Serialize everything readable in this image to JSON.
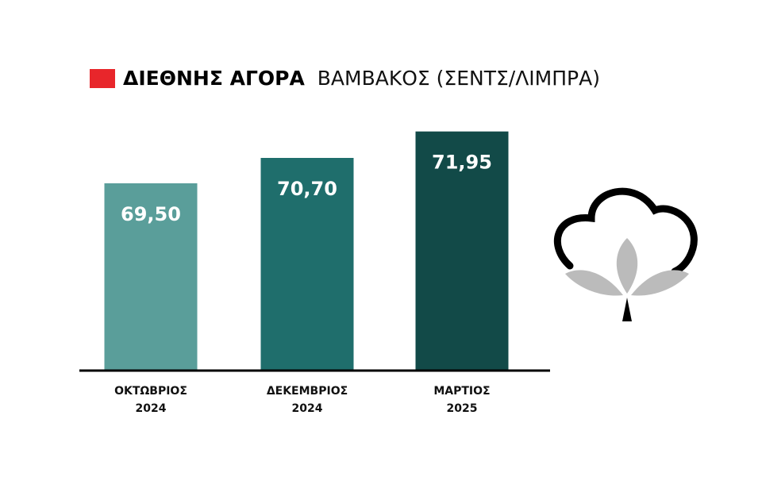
{
  "chart_data": {
    "type": "bar",
    "title": "ΔΙΕΘΝΗΣ ΑΓΟΡΑ",
    "subtitle": "ΒΑΜΒΑΚΟΣ (ΣΕΝΤΣ/ΛΙΜΠΡΑ)",
    "categories": [
      "ΟΚΤΩΒΡΙΟΣ 2024",
      "ΔΕΚΕΜΒΡΙΟΣ 2024",
      "ΜΑΡΤΙΟΣ 2025"
    ],
    "values": [
      69.5,
      70.7,
      71.95
    ],
    "value_labels": [
      "69,50",
      "70,70",
      "71,95"
    ],
    "colors": [
      "#5a9e9a",
      "#1f6e6c",
      "#124a48"
    ],
    "ylim": [
      60.65,
      72.5
    ]
  }
}
